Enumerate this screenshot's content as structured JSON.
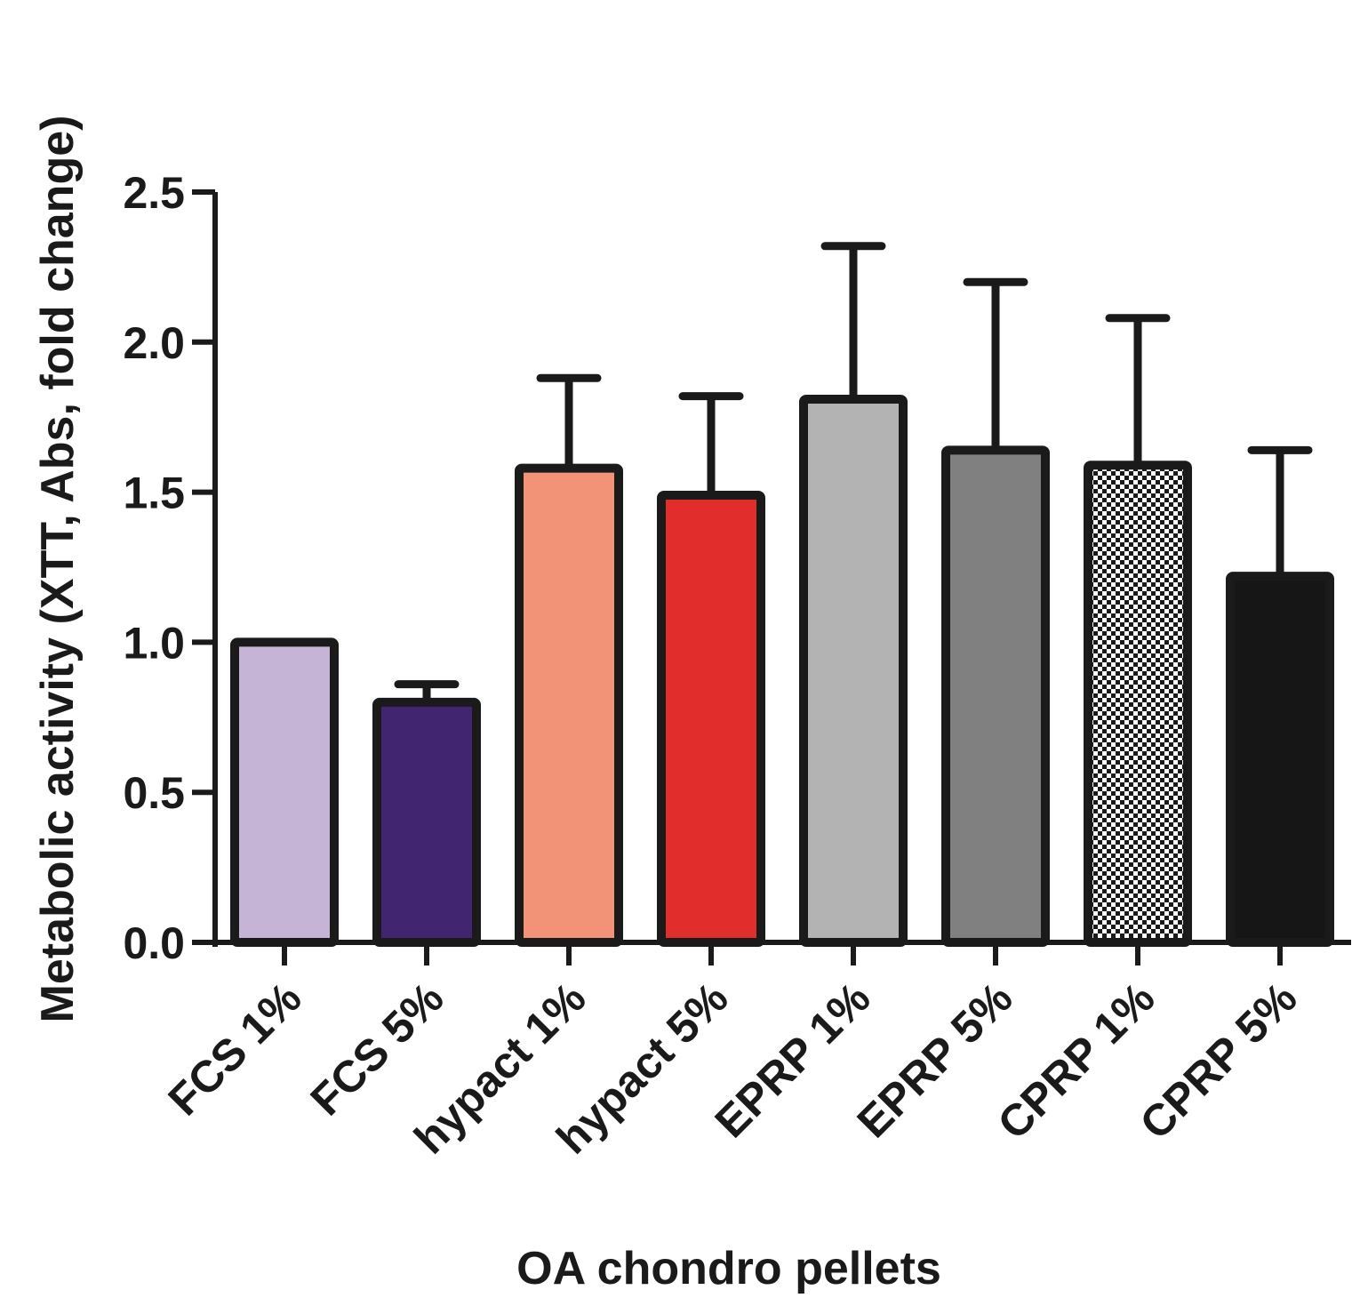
{
  "chart_data": {
    "type": "bar",
    "title": "",
    "xlabel": "OA chondro pellets",
    "ylabel": "Metabolic activity (XTT, Abs, fold change)",
    "ylim": [
      0,
      2.5
    ],
    "yticks": [
      0.0,
      0.5,
      1.0,
      1.5,
      2.0,
      2.5
    ],
    "ytick_labels": [
      "0.0",
      "0.5",
      "1.0",
      "1.5",
      "2.0",
      "2.5"
    ],
    "categories": [
      "FCS 1%",
      "FCS 5%",
      "hypact 1%",
      "hypact 5%",
      "EPRP 1%",
      "EPRP 5%",
      "CPRP 1%",
      "CPRP 5%"
    ],
    "values": [
      1.0,
      0.8,
      1.58,
      1.49,
      1.81,
      1.64,
      1.59,
      1.22
    ],
    "error_upper": [
      0.0,
      0.06,
      0.3,
      0.33,
      0.51,
      0.56,
      0.49,
      0.42
    ],
    "bar_fills": [
      "#c5b4d5",
      "#412571",
      "#f29277",
      "#e12d2b",
      "#b3b3b3",
      "#808080",
      "checker",
      "#161616"
    ],
    "outline_color": "#1a1a1a"
  }
}
